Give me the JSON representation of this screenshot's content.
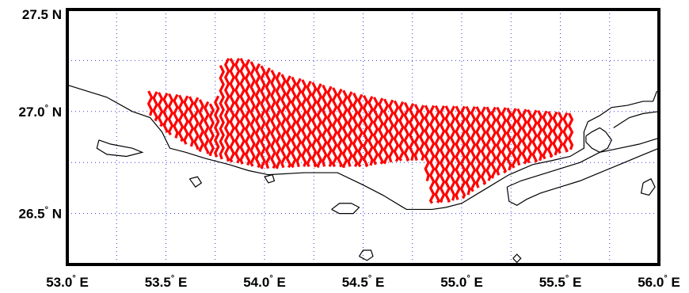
{
  "map": {
    "lon_range": [
      53.0,
      56.0
    ],
    "lat_range": [
      26.25,
      27.5
    ],
    "grid": true,
    "grid_color": "#3b3bd6",
    "frame_color": "#000000",
    "coastline_color": "#000000",
    "track_color": "#ff0000",
    "x_ticks": [
      {
        "value": 53.0,
        "label": "53.0",
        "deg": "°",
        "dir": "E"
      },
      {
        "value": 53.5,
        "label": "53.5",
        "deg": "°",
        "dir": "E"
      },
      {
        "value": 54.0,
        "label": "54.0",
        "deg": "°",
        "dir": "E"
      },
      {
        "value": 54.5,
        "label": "54.5",
        "deg": "°",
        "dir": "E"
      },
      {
        "value": 55.0,
        "label": "55.0",
        "deg": "°",
        "dir": "E"
      },
      {
        "value": 55.5,
        "label": "55.5",
        "deg": "°",
        "dir": "E"
      },
      {
        "value": 56.0,
        "label": "56.0",
        "deg": "°",
        "dir": "E"
      }
    ],
    "y_ticks": [
      {
        "value": 27.5,
        "label": "27.5",
        "deg": "",
        "dir": "N"
      },
      {
        "value": 27.0,
        "label": "27.0",
        "deg": "°",
        "dir": "N"
      },
      {
        "value": 26.5,
        "label": "26.5",
        "deg": "°",
        "dir": "N"
      }
    ],
    "survey_area": {
      "lon_start": 53.42,
      "lon_end": 55.57,
      "line_spacing_deg": 0.026,
      "north_edge": [
        [
          53.42,
          27.1
        ],
        [
          53.65,
          27.07
        ],
        [
          53.75,
          27.03
        ],
        [
          53.79,
          27.26
        ],
        [
          53.9,
          27.26
        ],
        [
          54.1,
          27.18
        ],
        [
          54.5,
          27.08
        ],
        [
          54.8,
          27.03
        ],
        [
          55.2,
          27.02
        ],
        [
          55.57,
          26.99
        ]
      ],
      "south_edge": [
        [
          53.42,
          26.98
        ],
        [
          53.5,
          26.9
        ],
        [
          53.6,
          26.84
        ],
        [
          53.8,
          26.76
        ],
        [
          54.0,
          26.72
        ],
        [
          54.2,
          26.73
        ],
        [
          54.5,
          26.73
        ],
        [
          54.7,
          26.76
        ],
        [
          54.8,
          26.76
        ],
        [
          54.85,
          26.55
        ],
        [
          55.0,
          26.57
        ],
        [
          55.15,
          26.67
        ],
        [
          55.3,
          26.74
        ],
        [
          55.4,
          26.76
        ],
        [
          55.57,
          26.82
        ]
      ]
    },
    "coastline": [
      [
        [
          53.0,
          27.13
        ],
        [
          53.1,
          27.1
        ],
        [
          53.2,
          27.07
        ],
        [
          53.33,
          27.0
        ],
        [
          53.42,
          26.97
        ],
        [
          53.48,
          26.9
        ],
        [
          53.52,
          26.82
        ],
        [
          53.6,
          26.8
        ],
        [
          53.7,
          26.77
        ],
        [
          53.82,
          26.74
        ],
        [
          53.92,
          26.71
        ],
        [
          54.02,
          26.69
        ],
        [
          54.2,
          26.7
        ],
        [
          54.37,
          26.7
        ],
        [
          54.5,
          26.64
        ],
        [
          54.6,
          26.59
        ],
        [
          54.72,
          26.52
        ],
        [
          54.85,
          26.52
        ],
        [
          54.92,
          26.53
        ],
        [
          55.0,
          26.55
        ],
        [
          55.12,
          26.62
        ],
        [
          55.24,
          26.69
        ],
        [
          55.36,
          26.74
        ],
        [
          55.46,
          26.76
        ],
        [
          55.55,
          26.78
        ],
        [
          55.62,
          26.82
        ],
        [
          55.62,
          26.9
        ],
        [
          55.64,
          26.95
        ],
        [
          55.7,
          26.98
        ],
        [
          55.76,
          27.02
        ],
        [
          55.84,
          27.03
        ],
        [
          55.92,
          27.05
        ],
        [
          55.97,
          27.05
        ],
        [
          55.99,
          27.1
        ]
      ],
      [
        [
          55.63,
          26.88
        ],
        [
          55.66,
          26.9
        ],
        [
          55.7,
          26.92
        ],
        [
          55.73,
          26.9
        ],
        [
          55.76,
          26.86
        ],
        [
          55.74,
          26.82
        ],
        [
          55.7,
          26.8
        ],
        [
          55.66,
          26.82
        ],
        [
          55.63,
          26.85
        ],
        [
          55.63,
          26.88
        ]
      ],
      [
        [
          55.77,
          26.92
        ],
        [
          55.85,
          26.97
        ],
        [
          55.92,
          26.99
        ],
        [
          56.0,
          27.0
        ]
      ],
      [
        [
          55.23,
          26.63
        ],
        [
          55.3,
          26.66
        ],
        [
          55.4,
          26.69
        ],
        [
          55.5,
          26.72
        ],
        [
          55.6,
          26.75
        ],
        [
          55.7,
          26.8
        ],
        [
          55.8,
          26.82
        ],
        [
          55.9,
          26.84
        ],
        [
          56.0,
          26.87
        ],
        [
          56.0,
          26.82
        ],
        [
          55.9,
          26.78
        ],
        [
          55.8,
          26.74
        ],
        [
          55.7,
          26.7
        ],
        [
          55.6,
          26.66
        ],
        [
          55.5,
          26.63
        ],
        [
          55.4,
          26.6
        ],
        [
          55.33,
          26.57
        ],
        [
          55.28,
          26.54
        ],
        [
          55.24,
          26.56
        ],
        [
          55.23,
          26.63
        ]
      ],
      [
        [
          55.92,
          26.65
        ],
        [
          55.96,
          26.67
        ],
        [
          55.98,
          26.63
        ],
        [
          55.95,
          26.59
        ],
        [
          55.91,
          26.6
        ],
        [
          55.92,
          26.65
        ]
      ],
      [
        [
          53.16,
          26.86
        ],
        [
          53.22,
          26.84
        ],
        [
          53.33,
          26.82
        ],
        [
          53.38,
          26.8
        ],
        [
          53.3,
          26.78
        ],
        [
          53.2,
          26.79
        ],
        [
          53.15,
          26.82
        ],
        [
          53.16,
          26.86
        ]
      ],
      [
        [
          53.62,
          26.67
        ],
        [
          53.66,
          26.68
        ],
        [
          53.68,
          26.65
        ],
        [
          53.65,
          26.63
        ],
        [
          53.62,
          26.67
        ]
      ],
      [
        [
          54.0,
          26.68
        ],
        [
          54.04,
          26.69
        ],
        [
          54.05,
          26.66
        ],
        [
          54.02,
          26.65
        ],
        [
          54.0,
          26.68
        ]
      ],
      [
        [
          54.34,
          26.52
        ],
        [
          54.38,
          26.55
        ],
        [
          54.44,
          26.55
        ],
        [
          54.48,
          26.53
        ],
        [
          54.45,
          26.5
        ],
        [
          54.38,
          26.5
        ],
        [
          54.34,
          26.52
        ]
      ],
      [
        [
          54.48,
          26.29
        ],
        [
          54.5,
          26.32
        ],
        [
          54.54,
          26.32
        ],
        [
          54.55,
          26.29
        ],
        [
          54.52,
          26.27
        ],
        [
          54.48,
          26.29
        ]
      ],
      [
        [
          55.26,
          26.28
        ],
        [
          55.28,
          26.3
        ],
        [
          55.3,
          26.28
        ],
        [
          55.28,
          26.26
        ],
        [
          55.26,
          26.28
        ]
      ]
    ]
  }
}
